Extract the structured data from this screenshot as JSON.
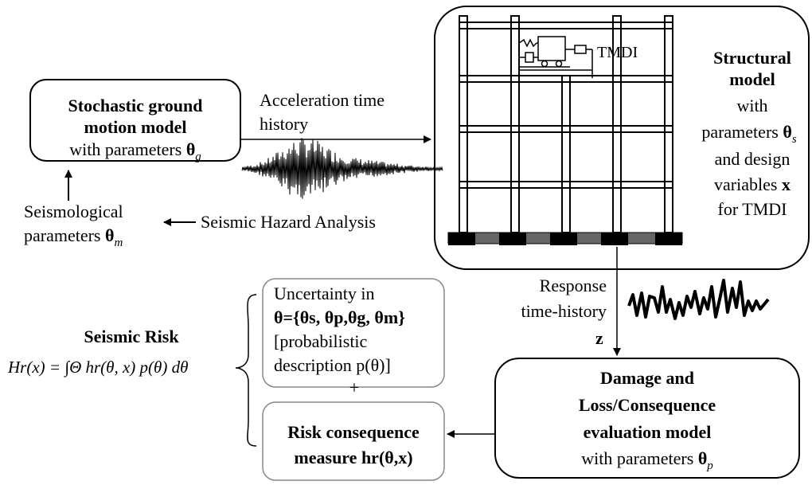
{
  "ground_motion_box": {
    "line1": "Stochastic ground",
    "line2": "motion model",
    "line3_prefix": "with parameters ",
    "line3_symbol": "θ",
    "line3_sub": "g"
  },
  "acceleration_label": {
    "line1": "Acceleration time",
    "line2": "history"
  },
  "seismological_label": {
    "line1": "Seismological",
    "line2_prefix": "parameters ",
    "line2_symbol": "θ",
    "line2_sub": "m"
  },
  "hazard_label": "Seismic Hazard Analysis",
  "tmdi_label": "TMDI",
  "structural_model_label": {
    "line1": "Structural",
    "line2": "model",
    "line3": "with",
    "line4_prefix": "parameters ",
    "line4_symbol": "θ",
    "line4_sub": "s",
    "line5": "and design",
    "line6_prefix": "variables ",
    "line6_symbol": "x",
    "line7": "for TMDI"
  },
  "response_label": {
    "line1": "Response",
    "line2": "time-history",
    "z": "z"
  },
  "uncertainty_box": {
    "line1": "Uncertainty in",
    "line2": "θ={θs, θp,θg, θm}",
    "line3": "[probabilistic",
    "line4": "description p(θ)]"
  },
  "plus_sign": "+",
  "seismic_risk": {
    "title": "Seismic Risk",
    "formula": "Hr(x) = ∫Θ hr(θ, x) p(θ) dθ"
  },
  "risk_consequence_box": {
    "line1": "Risk consequence",
    "line2": "measure  hr(θ,x)"
  },
  "damage_box": {
    "line1": "Damage and",
    "line2": "Loss/Consequence",
    "line3": "evaluation model",
    "line4_prefix": "with parameters ",
    "line4_symbol": "θ",
    "line4_sub": "p"
  },
  "colors": {
    "ink": "#000000",
    "uncertainty_border": "#888888",
    "base_slab": "#666666"
  }
}
